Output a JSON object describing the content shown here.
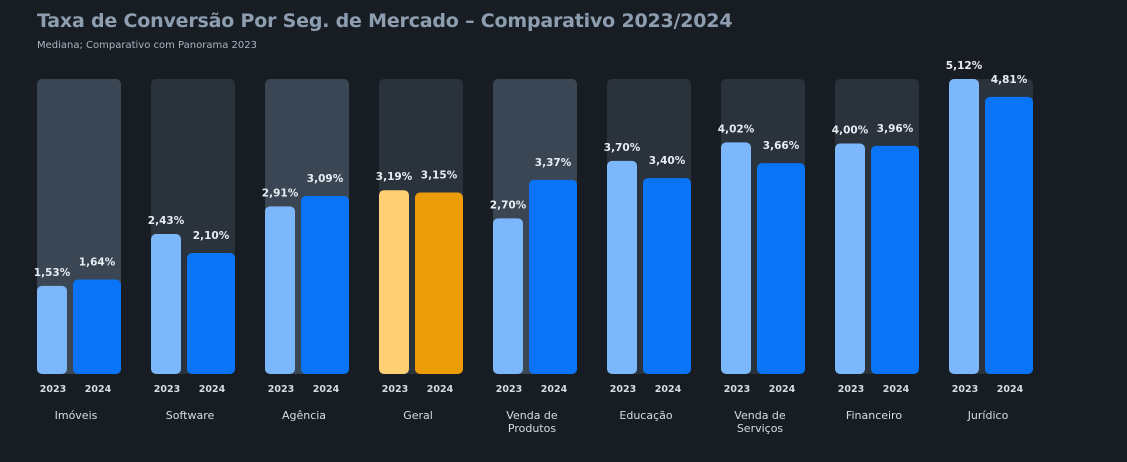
{
  "title": "Taxa de Conversão Por Seg. de Mercado – Comparativo 2023/2024",
  "subtitle": "Mediana; Comparativo com Panorama 2023",
  "colors": {
    "bar_2023": "#7db7fb",
    "bar_2024": "#0a74f7",
    "bar_2023_highlight": "#ffcf73",
    "bar_2024_highlight": "#eb9c06",
    "panel_light": "#3a4653",
    "panel_dark": "#2a323c",
    "background": "#181d23"
  },
  "chart_data": {
    "type": "bar",
    "title": "Taxa de Conversão Por Seg. de Mercado – Comparativo 2023/2024",
    "subtitle": "Mediana; Comparativo com Panorama 2023",
    "years": [
      "2023",
      "2024"
    ],
    "categories": [
      {
        "name": "Imóveis",
        "lines": [
          "Imóveis"
        ],
        "v2023": 1.53,
        "v2024": 1.64,
        "l2023": "1,53%",
        "l2024": "1,64%",
        "panel": "light",
        "highlight": false
      },
      {
        "name": "Software",
        "lines": [
          "Software"
        ],
        "v2023": 2.43,
        "v2024": 2.1,
        "l2023": "2,43%",
        "l2024": "2,10%",
        "panel": "dark",
        "highlight": false
      },
      {
        "name": "Agência",
        "lines": [
          "Agência"
        ],
        "v2023": 2.91,
        "v2024": 3.09,
        "l2023": "2,91%",
        "l2024": "3,09%",
        "panel": "light",
        "highlight": false
      },
      {
        "name": "Geral",
        "lines": [
          "Geral"
        ],
        "v2023": 3.19,
        "v2024": 3.15,
        "l2023": "3,19%",
        "l2024": "3,15%",
        "panel": "dark",
        "highlight": true
      },
      {
        "name": "Venda de Produtos",
        "lines": [
          "Venda de",
          "Produtos"
        ],
        "v2023": 2.7,
        "v2024": 3.37,
        "l2023": "2,70%",
        "l2024": "3,37%",
        "panel": "light",
        "highlight": false
      },
      {
        "name": "Educação",
        "lines": [
          "Educação"
        ],
        "v2023": 3.7,
        "v2024": 3.4,
        "l2023": "3,70%",
        "l2024": "3,40%",
        "panel": "dark",
        "highlight": false
      },
      {
        "name": "Venda de Serviços",
        "lines": [
          "Venda de",
          "Serviços"
        ],
        "v2023": 4.02,
        "v2024": 3.66,
        "l2023": "4,02%",
        "l2024": "3,66%",
        "panel": "dark",
        "highlight": false
      },
      {
        "name": "Financeiro",
        "lines": [
          "Financeiro"
        ],
        "v2023": 4.0,
        "v2024": 3.96,
        "l2023": "4,00%",
        "l2024": "3,96%",
        "panel": "dark",
        "highlight": false
      },
      {
        "name": "Jurídico",
        "lines": [
          "Jurídico"
        ],
        "v2023": 5.12,
        "v2024": 4.81,
        "l2023": "5,12%",
        "l2024": "4,81%",
        "panel": "dark",
        "highlight": false
      }
    ],
    "ylim": [
      0,
      5.12
    ],
    "grid": false,
    "legend": "none"
  }
}
